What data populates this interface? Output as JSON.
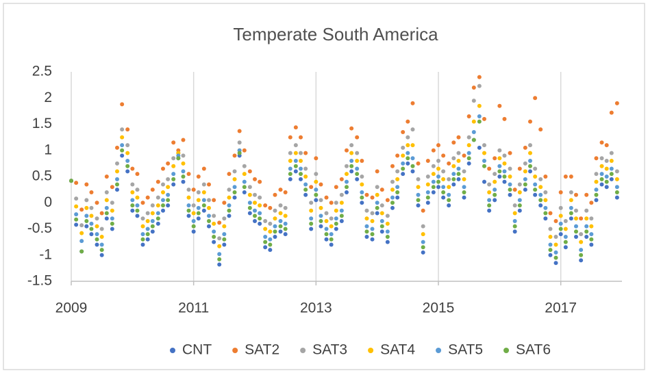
{
  "chart_data": {
    "type": "scatter",
    "title": "Temperate South America",
    "x": [
      2009,
      2009.08,
      2009.17,
      2009.25,
      2009.33,
      2009.42,
      2009.5,
      2009.58,
      2009.67,
      2009.75,
      2009.83,
      2009.92,
      2010,
      2010.08,
      2010.17,
      2010.25,
      2010.33,
      2010.42,
      2010.5,
      2010.58,
      2010.67,
      2010.75,
      2010.83,
      2010.92,
      2011,
      2011.08,
      2011.17,
      2011.25,
      2011.33,
      2011.42,
      2011.5,
      2011.58,
      2011.67,
      2011.75,
      2011.83,
      2011.92,
      2012,
      2012.08,
      2012.17,
      2012.25,
      2012.33,
      2012.42,
      2012.5,
      2012.58,
      2012.67,
      2012.75,
      2012.83,
      2012.92,
      2013,
      2013.08,
      2013.17,
      2013.25,
      2013.33,
      2013.42,
      2013.5,
      2013.58,
      2013.67,
      2013.75,
      2013.83,
      2013.92,
      2014,
      2014.08,
      2014.17,
      2014.25,
      2014.33,
      2014.42,
      2014.5,
      2014.58,
      2014.67,
      2014.75,
      2014.83,
      2014.92,
      2015,
      2015.08,
      2015.17,
      2015.25,
      2015.33,
      2015.42,
      2015.5,
      2015.58,
      2015.67,
      2015.75,
      2015.83,
      2015.92,
      2016,
      2016.08,
      2016.17,
      2016.25,
      2016.33,
      2016.42,
      2016.5,
      2016.58,
      2016.67,
      2016.75,
      2016.83,
      2016.92,
      2017,
      2017.08,
      2017.17,
      2017.25,
      2017.33,
      2017.42,
      2017.5,
      2017.58,
      2017.67,
      2017.75,
      2017.83,
      2017.92
    ],
    "series": [
      {
        "name": "CNT",
        "color": "#4472c4",
        "values": [
          0.42,
          -0.42,
          -0.93,
          -0.45,
          -0.6,
          -0.8,
          -1.0,
          -0.3,
          -0.5,
          0.25,
          0.9,
          0.6,
          -0.15,
          -0.25,
          -0.8,
          -0.7,
          -0.55,
          -0.4,
          -0.15,
          -0.05,
          0.35,
          0.85,
          0.4,
          -0.25,
          -0.55,
          -0.3,
          -0.15,
          -0.45,
          -0.75,
          -1.18,
          -0.8,
          -0.25,
          0.1,
          0.9,
          0.2,
          -0.2,
          -0.35,
          -0.4,
          -0.85,
          -0.9,
          -0.65,
          -0.55,
          -0.6,
          0.45,
          0.6,
          0.45,
          0.15,
          -0.5,
          0.05,
          -0.45,
          -0.7,
          -0.8,
          -0.5,
          -0.35,
          0.2,
          0.6,
          0.45,
          0.0,
          -0.65,
          -0.7,
          -0.2,
          -0.55,
          -0.75,
          -0.1,
          0.1,
          0.55,
          0.75,
          0.6,
          -0.05,
          -0.95,
          0.0,
          0.2,
          0.3,
          0.1,
          -0.05,
          0.35,
          0.45,
          0.1,
          0.75,
          1.2,
          1.05,
          0.4,
          -0.15,
          0.05,
          0.5,
          0.4,
          0.15,
          -0.55,
          -0.15,
          0.25,
          0.6,
          0.15,
          -0.05,
          -0.3,
          -1.0,
          -1.15,
          -0.6,
          -0.85,
          -0.3,
          -0.65,
          -1.1,
          -0.65,
          -0.8,
          0.05,
          0.35,
          0.3,
          0.45,
          0.1
        ]
      },
      {
        "name": "SAT2",
        "color": "#ed7d31",
        "values": [
          0.42,
          0.38,
          -0.13,
          0.35,
          0.2,
          0.0,
          -0.2,
          0.5,
          0.3,
          1.05,
          1.88,
          1.4,
          0.65,
          0.55,
          0.0,
          0.1,
          0.25,
          0.4,
          0.65,
          0.75,
          1.15,
          1.0,
          1.2,
          0.55,
          0.25,
          0.5,
          0.65,
          0.35,
          0.05,
          -0.38,
          0.0,
          0.55,
          0.9,
          1.37,
          1.0,
          0.6,
          0.45,
          0.4,
          -0.05,
          -0.1,
          0.15,
          0.25,
          0.2,
          1.25,
          1.44,
          1.25,
          0.95,
          0.3,
          0.85,
          0.35,
          0.1,
          0.0,
          0.3,
          0.45,
          1.0,
          1.42,
          1.25,
          0.8,
          0.15,
          0.1,
          0.6,
          0.25,
          0.05,
          0.7,
          0.9,
          1.35,
          1.55,
          1.9,
          0.75,
          -0.15,
          0.8,
          1.0,
          1.1,
          0.9,
          0.75,
          1.15,
          1.25,
          0.9,
          1.65,
          2.2,
          2.4,
          1.6,
          0.65,
          0.85,
          1.85,
          1.6,
          0.95,
          0.25,
          0.65,
          1.05,
          1.55,
          2.0,
          1.4,
          0.5,
          -0.2,
          -0.35,
          0.2,
          0.5,
          0.5,
          0.15,
          -0.3,
          0.15,
          0.0,
          0.85,
          1.15,
          1.1,
          1.72,
          1.9
        ]
      },
      {
        "name": "SAT3",
        "color": "#a5a5a5",
        "values": [
          0.42,
          0.08,
          -0.43,
          0.05,
          -0.1,
          -0.3,
          -0.5,
          0.2,
          0.0,
          0.75,
          1.4,
          1.1,
          0.35,
          0.25,
          -0.3,
          -0.2,
          -0.05,
          0.1,
          0.35,
          0.45,
          0.85,
          0.95,
          0.9,
          0.25,
          -0.05,
          0.2,
          0.35,
          0.05,
          -0.25,
          -0.68,
          -0.3,
          0.25,
          0.6,
          1.15,
          0.7,
          0.3,
          0.15,
          0.1,
          -0.35,
          -0.4,
          -0.15,
          -0.05,
          -0.1,
          0.95,
          1.1,
          0.95,
          0.65,
          0.0,
          0.55,
          0.05,
          -0.2,
          -0.3,
          0.0,
          0.15,
          0.7,
          1.1,
          0.95,
          0.5,
          -0.15,
          -0.2,
          0.3,
          -0.05,
          -0.25,
          0.4,
          0.6,
          1.05,
          1.25,
          1.4,
          0.45,
          -0.45,
          0.5,
          0.7,
          0.8,
          0.6,
          0.45,
          0.85,
          0.95,
          0.6,
          1.25,
          1.95,
          2.23,
          1.1,
          0.35,
          0.55,
          1.0,
          0.9,
          0.65,
          -0.05,
          0.35,
          0.75,
          1.1,
          0.65,
          0.45,
          0.2,
          -0.5,
          -0.65,
          -0.1,
          -0.35,
          0.2,
          -0.15,
          -0.6,
          -0.15,
          -0.3,
          0.55,
          0.85,
          0.8,
          0.95,
          0.6
        ]
      },
      {
        "name": "SAT4",
        "color": "#ffc000",
        "values": [
          0.42,
          -0.07,
          -0.58,
          -0.1,
          -0.25,
          -0.45,
          -0.65,
          0.05,
          -0.15,
          0.6,
          1.25,
          0.95,
          0.2,
          0.1,
          -0.45,
          -0.35,
          -0.2,
          -0.05,
          0.2,
          0.3,
          0.7,
          0.95,
          0.75,
          0.1,
          -0.2,
          0.05,
          0.2,
          -0.1,
          -0.4,
          -0.83,
          -0.45,
          0.1,
          0.45,
          1.0,
          0.55,
          0.15,
          0.0,
          -0.05,
          -0.5,
          -0.55,
          -0.3,
          -0.2,
          -0.25,
          0.8,
          0.95,
          0.8,
          0.5,
          -0.15,
          0.4,
          -0.1,
          -0.35,
          -0.45,
          -0.15,
          0.0,
          0.55,
          0.95,
          0.8,
          0.35,
          -0.3,
          -0.35,
          0.15,
          -0.2,
          -0.4,
          0.25,
          0.45,
          0.9,
          1.1,
          1.1,
          0.3,
          -0.6,
          0.35,
          0.55,
          0.65,
          0.45,
          0.3,
          0.7,
          0.8,
          0.45,
          1.1,
          1.55,
          1.85,
          0.95,
          0.2,
          0.4,
          0.85,
          0.75,
          0.5,
          -0.2,
          0.2,
          0.6,
          0.95,
          0.5,
          0.3,
          0.05,
          -0.65,
          -0.8,
          -0.25,
          -0.5,
          0.05,
          -0.3,
          -0.75,
          -0.3,
          -0.45,
          0.4,
          0.7,
          0.65,
          0.8,
          0.45
        ]
      },
      {
        "name": "SAT5",
        "color": "#5b9bd5",
        "values": [
          0.42,
          -0.22,
          -0.73,
          -0.25,
          -0.4,
          -0.6,
          -0.8,
          -0.1,
          -0.3,
          0.45,
          1.1,
          0.8,
          0.05,
          -0.05,
          -0.6,
          -0.5,
          -0.35,
          -0.2,
          0.05,
          0.15,
          0.55,
          0.9,
          0.6,
          -0.05,
          -0.35,
          -0.1,
          0.05,
          -0.25,
          -0.55,
          -0.98,
          -0.6,
          -0.05,
          0.3,
          1.0,
          0.4,
          0.0,
          -0.15,
          -0.2,
          -0.65,
          -0.7,
          -0.45,
          -0.35,
          -0.4,
          0.65,
          0.8,
          0.65,
          0.35,
          -0.3,
          0.25,
          -0.25,
          -0.5,
          -0.6,
          -0.3,
          -0.15,
          0.4,
          0.8,
          0.65,
          0.2,
          -0.45,
          -0.5,
          0.0,
          -0.35,
          -0.55,
          0.1,
          0.3,
          0.75,
          0.95,
          0.85,
          0.15,
          -0.75,
          0.2,
          0.4,
          0.5,
          0.3,
          0.15,
          0.55,
          0.65,
          0.3,
          0.95,
          1.35,
          1.65,
          0.8,
          0.05,
          0.25,
          0.7,
          0.6,
          0.35,
          -0.35,
          0.05,
          0.45,
          0.8,
          0.35,
          0.15,
          -0.1,
          -0.8,
          -0.95,
          -0.4,
          -0.65,
          -0.1,
          -0.45,
          -0.9,
          -0.45,
          -0.6,
          0.25,
          0.55,
          0.5,
          0.65,
          0.3
        ]
      },
      {
        "name": "SAT6",
        "color": "#70ad47",
        "values": [
          0.42,
          -0.32,
          -0.93,
          -0.35,
          -0.5,
          -0.7,
          -0.9,
          -0.2,
          -0.4,
          0.35,
          1.0,
          0.7,
          -0.05,
          -0.15,
          -0.7,
          -0.6,
          -0.45,
          -0.3,
          -0.05,
          0.05,
          0.45,
          0.85,
          0.5,
          -0.15,
          -0.45,
          -0.2,
          -0.05,
          -0.35,
          -0.65,
          -1.08,
          -0.7,
          -0.15,
          0.2,
          0.95,
          0.3,
          -0.1,
          -0.25,
          -0.3,
          -0.75,
          -0.8,
          -0.55,
          -0.45,
          -0.5,
          0.55,
          0.7,
          0.55,
          0.25,
          -0.4,
          0.15,
          -0.35,
          -0.6,
          -0.7,
          -0.4,
          -0.25,
          0.3,
          0.7,
          0.55,
          0.1,
          -0.55,
          -0.6,
          -0.1,
          -0.45,
          -0.65,
          0.0,
          0.2,
          0.65,
          0.85,
          0.7,
          0.05,
          -0.85,
          0.1,
          0.3,
          0.4,
          0.2,
          0.05,
          0.45,
          0.55,
          0.2,
          0.85,
          1.2,
          1.55,
          0.7,
          -0.05,
          0.15,
          0.6,
          0.5,
          0.25,
          -0.45,
          -0.05,
          0.35,
          0.7,
          0.25,
          0.05,
          -0.2,
          -0.9,
          -1.05,
          -0.5,
          -0.75,
          -0.2,
          -0.55,
          -1.0,
          -0.55,
          -0.7,
          0.15,
          0.45,
          0.4,
          0.55,
          0.2
        ]
      }
    ],
    "xlim": [
      2009,
      2018
    ],
    "xticks": [
      2009,
      2011,
      2013,
      2015,
      2017
    ],
    "ylim": [
      -1.5,
      2.5
    ],
    "yticks": [
      -1.5,
      -1,
      -0.5,
      0,
      0.5,
      1,
      1.5,
      2,
      2.5
    ],
    "grid": "x",
    "legend": "bottom"
  }
}
